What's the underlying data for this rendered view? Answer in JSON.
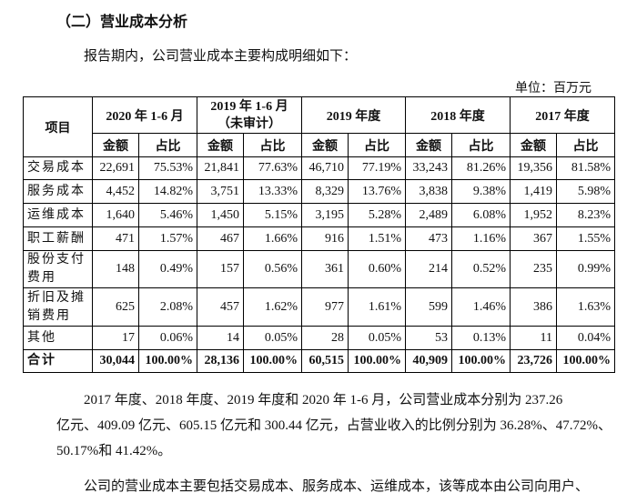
{
  "heading": "（二）营业成本分析",
  "intro": "报告期内，公司营业成本主要构成明细如下：",
  "unit": "单位：百万元",
  "table": {
    "item_header": "项目",
    "periods": [
      "2020 年 1-6 月",
      "2019 年 1-6 月\n（未审计）",
      "2019 年度",
      "2018 年度",
      "2017 年度"
    ],
    "sub_amount": "金额",
    "sub_ratio": "占比",
    "rows": [
      {
        "item": "交易成本",
        "values": [
          "22,691",
          "75.53%",
          "21,841",
          "77.63%",
          "46,710",
          "77.19%",
          "33,243",
          "81.26%",
          "19,356",
          "81.58%"
        ]
      },
      {
        "item": "服务成本",
        "values": [
          "4,452",
          "14.82%",
          "3,751",
          "13.33%",
          "8,329",
          "13.76%",
          "3,838",
          "9.38%",
          "1,419",
          "5.98%"
        ]
      },
      {
        "item": "运维成本",
        "values": [
          "1,640",
          "5.46%",
          "1,450",
          "5.15%",
          "3,195",
          "5.28%",
          "2,489",
          "6.08%",
          "1,952",
          "8.23%"
        ]
      },
      {
        "item": "职工薪酬",
        "values": [
          "471",
          "1.57%",
          "467",
          "1.66%",
          "916",
          "1.51%",
          "473",
          "1.16%",
          "367",
          "1.55%"
        ]
      },
      {
        "item": "股份支付费用",
        "values": [
          "148",
          "0.49%",
          "157",
          "0.56%",
          "361",
          "0.60%",
          "214",
          "0.52%",
          "235",
          "0.99%"
        ]
      },
      {
        "item": "折旧及摊销费用",
        "values": [
          "625",
          "2.08%",
          "457",
          "1.62%",
          "977",
          "1.61%",
          "599",
          "1.46%",
          "386",
          "1.63%"
        ]
      },
      {
        "item": "其他",
        "values": [
          "17",
          "0.06%",
          "14",
          "0.05%",
          "28",
          "0.05%",
          "53",
          "0.13%",
          "11",
          "0.04%"
        ]
      },
      {
        "item": "合计",
        "values": [
          "30,044",
          "100.00%",
          "28,136",
          "100.00%",
          "60,515",
          "100.00%",
          "40,909",
          "100.00%",
          "23,726",
          "100.00%"
        ]
      }
    ]
  },
  "paragraph1": [
    "2017 年度、2018 年度、2019 年度和 2020 年 1-6 月，公司营业成本分别为 237.26",
    "亿元、409.09 亿元、605.15 亿元和 300.44 亿元，占营业收入的比例分别为 36.28%、47.72%、",
    "50.17%和 41.42%。"
  ],
  "paragraph2": "公司的营业成本主要包括交易成本、服务成本、运维成本，该等成本由公司向用户、"
}
